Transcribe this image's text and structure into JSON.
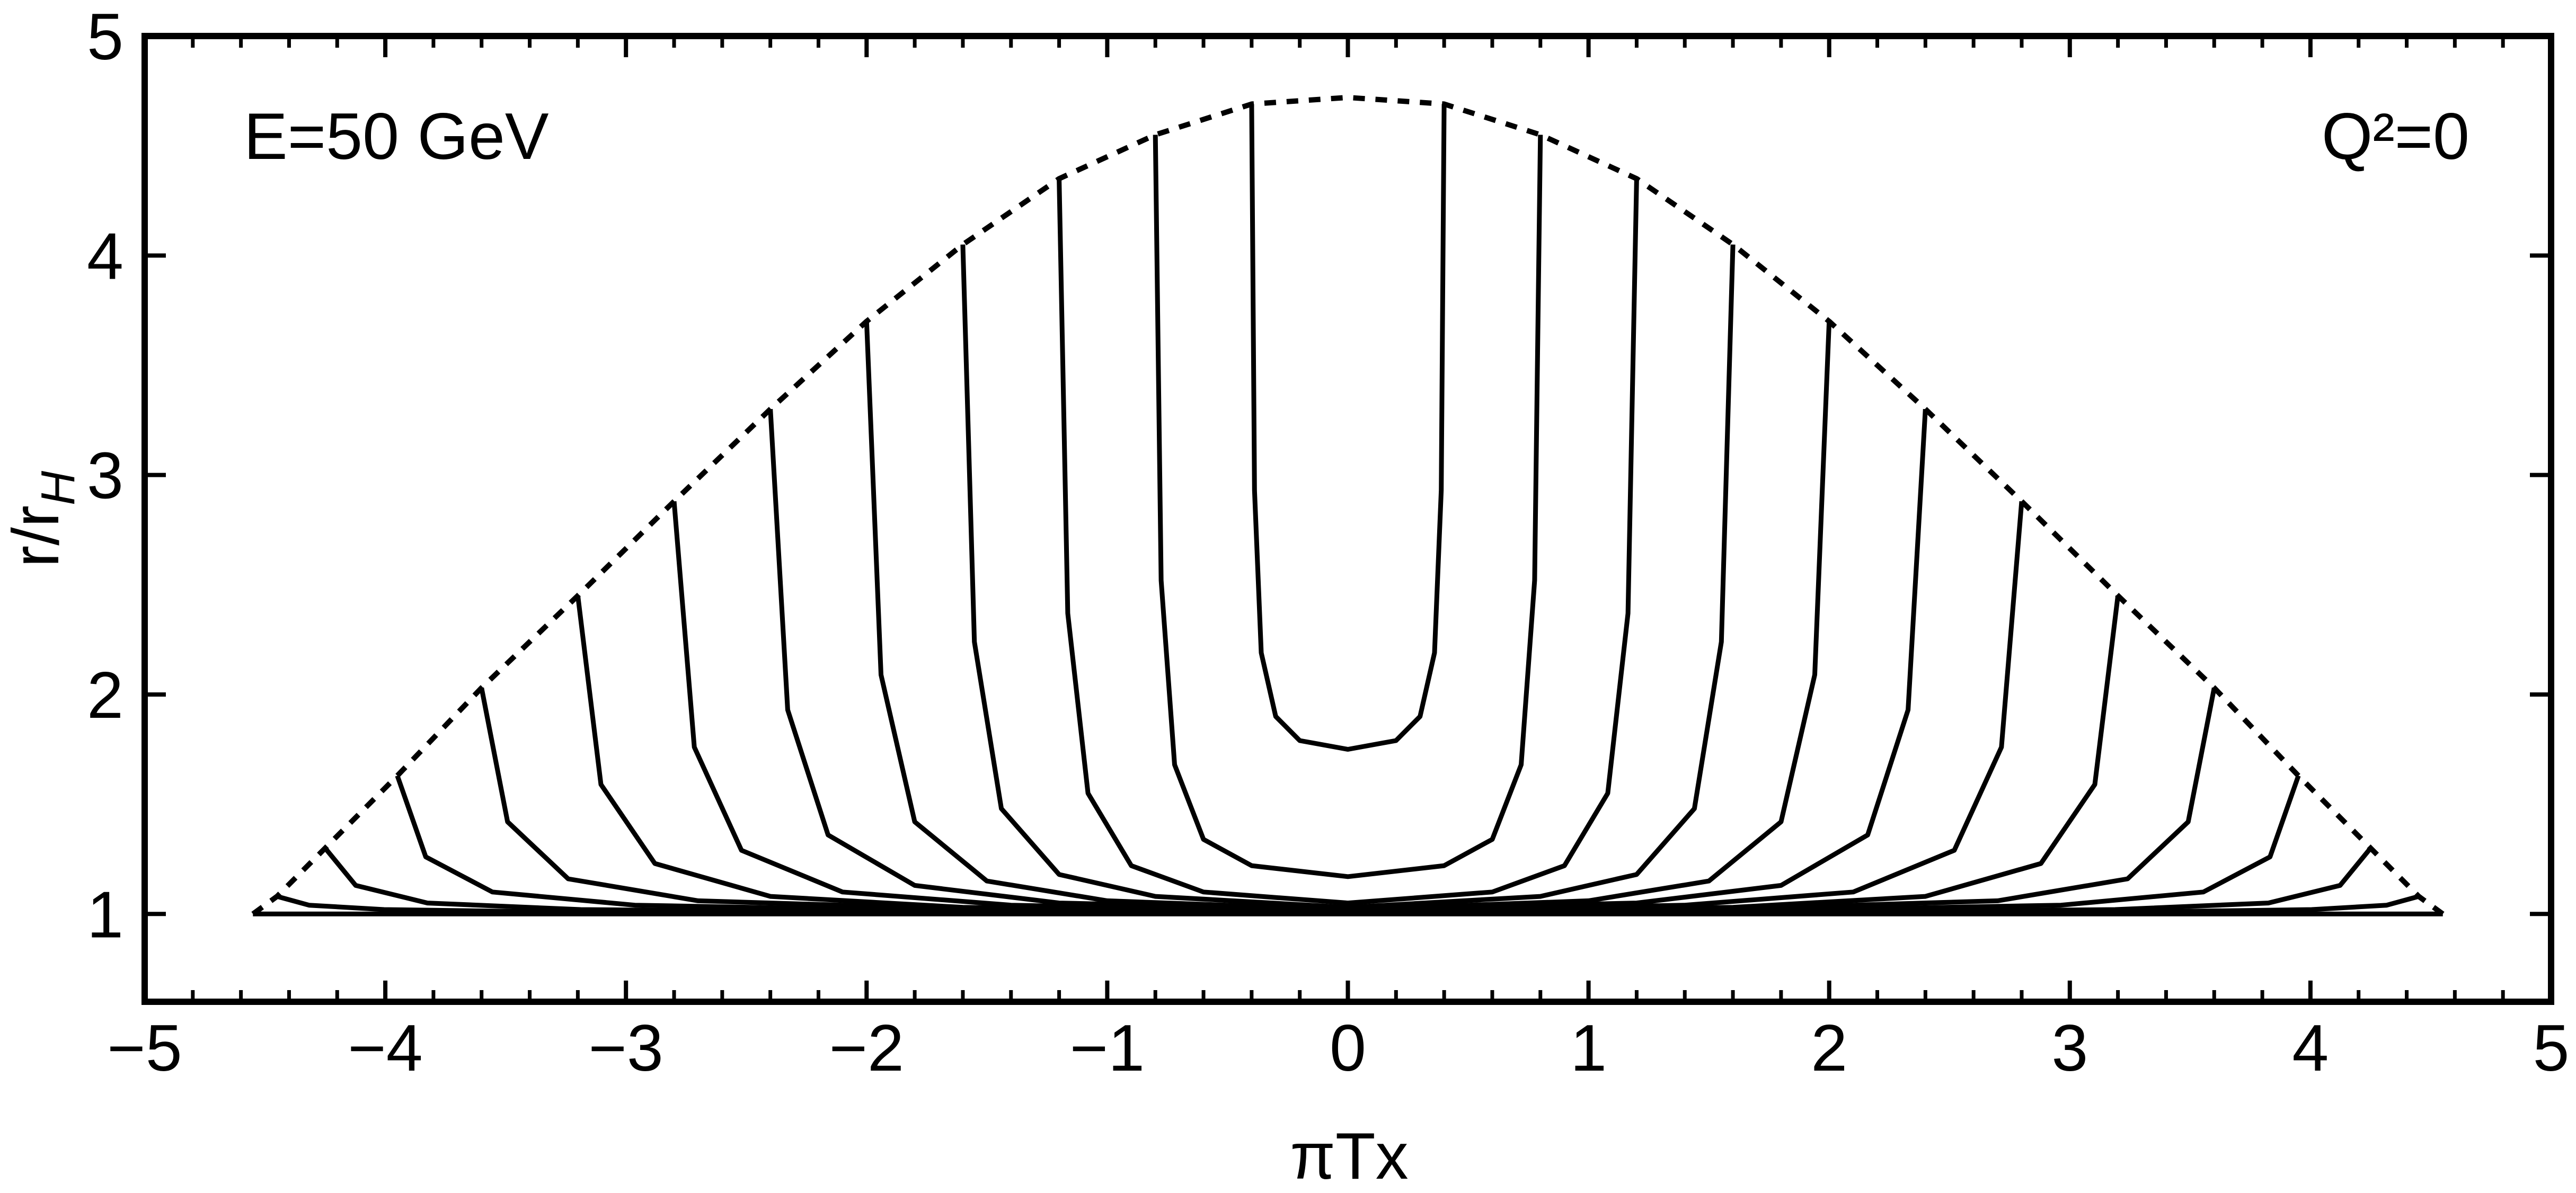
{
  "chart_data": {
    "type": "line",
    "xlabel": "πTx",
    "ylabel": [
      "r/r",
      "H"
    ],
    "annotations": [
      "E=50 GeV",
      "Q²=0"
    ],
    "xlim": [
      -5,
      5
    ],
    "ylim": [
      0.6,
      5
    ],
    "xticks": [
      {
        "value": -5,
        "label": "−5"
      },
      {
        "value": -4,
        "label": "−4"
      },
      {
        "value": -3,
        "label": "−3"
      },
      {
        "value": -2,
        "label": "−2"
      },
      {
        "value": -1,
        "label": "−1"
      },
      0,
      1,
      2,
      3,
      4,
      5
    ],
    "xminorticks": [
      -4.8,
      -4.6,
      -4.4,
      -4.2,
      -3.8,
      -3.6,
      -3.4,
      -3.2,
      -2.8,
      -2.6,
      -2.4,
      -2.2,
      -1.8,
      -1.6,
      -1.4,
      -1.2,
      -0.8,
      -0.6,
      -0.4,
      -0.2,
      0.2,
      0.4,
      0.6,
      0.8,
      1.2,
      1.4,
      1.6,
      1.8,
      2.2,
      2.4,
      2.6,
      2.8,
      3.2,
      3.4,
      3.6,
      3.8,
      4.2,
      4.4,
      4.6,
      4.8
    ],
    "yticks": [
      1,
      2,
      3,
      4,
      5
    ],
    "series": [
      {
        "color": "#000000",
        "linestyle": "dashed",
        "x": [
          -4.55,
          -4.45,
          -4.25,
          -3.95,
          -3.6,
          -3.2,
          -2.8,
          -2.4,
          -2.0,
          -1.6,
          -1.2,
          -0.8,
          -0.4,
          0,
          0.4,
          0.8,
          1.2,
          1.6,
          2.0,
          2.4,
          2.8,
          3.2,
          3.6,
          3.95,
          4.25,
          4.45,
          4.55
        ],
        "values": [
          1.0,
          1.08,
          1.3,
          1.63,
          2.03,
          2.45,
          2.88,
          3.3,
          3.7,
          4.05,
          4.35,
          4.55,
          4.69,
          4.72,
          4.69,
          4.55,
          4.35,
          4.05,
          3.7,
          3.3,
          2.88,
          2.45,
          2.03,
          1.63,
          1.3,
          1.08,
          1.0
        ]
      },
      {
        "color": "#000000",
        "linestyle": "solid",
        "x": [
          -4.55,
          4.55
        ],
        "values": [
          1,
          1
        ]
      },
      {
        "color": "#000000",
        "linestyle": "solid",
        "x": [
          -0.4,
          -0.388,
          -0.36,
          -0.3,
          -0.2,
          0,
          0.2,
          0.3,
          0.36,
          0.388,
          0.4
        ],
        "values": [
          4.69,
          2.93,
          2.19,
          1.9,
          1.79,
          1.75,
          1.79,
          1.9,
          2.19,
          2.93,
          4.69
        ]
      },
      {
        "color": "#000000",
        "linestyle": "solid",
        "x": [
          -0.8,
          -0.776,
          -0.72,
          -0.6,
          -0.4,
          0,
          0.4,
          0.6,
          0.72,
          0.776,
          0.8
        ],
        "values": [
          4.55,
          2.52,
          1.68,
          1.34,
          1.22,
          1.17,
          1.22,
          1.34,
          1.68,
          2.52,
          4.55
        ]
      },
      {
        "color": "#000000",
        "linestyle": "solid",
        "x": [
          -1.2,
          -1.164,
          -1.08,
          -0.9,
          -0.6,
          0,
          0.6,
          0.9,
          1.08,
          1.164,
          1.2
        ],
        "values": [
          4.35,
          2.37,
          1.55,
          1.22,
          1.1,
          1.05,
          1.1,
          1.22,
          1.55,
          2.37,
          4.35
        ]
      },
      {
        "color": "#000000",
        "linestyle": "solid",
        "x": [
          -1.6,
          -1.552,
          -1.44,
          -1.2,
          -0.8,
          0,
          0.8,
          1.2,
          1.44,
          1.552,
          1.6
        ],
        "values": [
          4.05,
          2.24,
          1.48,
          1.18,
          1.08,
          1.03,
          1.08,
          1.18,
          1.48,
          2.24,
          4.05
        ]
      },
      {
        "color": "#000000",
        "linestyle": "solid",
        "x": [
          -2.0,
          -1.94,
          -1.8,
          -1.5,
          -1.0,
          0,
          1.0,
          1.5,
          1.8,
          1.94,
          2.0
        ],
        "values": [
          3.7,
          2.09,
          1.42,
          1.15,
          1.06,
          1.02,
          1.06,
          1.15,
          1.42,
          2.09,
          3.7
        ]
      },
      {
        "color": "#000000",
        "linestyle": "solid",
        "x": [
          -2.4,
          -2.328,
          -2.16,
          -1.8,
          -1.2,
          0,
          1.2,
          1.8,
          2.16,
          2.328,
          2.4
        ],
        "values": [
          3.3,
          1.93,
          1.36,
          1.13,
          1.05,
          1.02,
          1.05,
          1.13,
          1.36,
          1.93,
          3.3
        ]
      },
      {
        "color": "#000000",
        "linestyle": "solid",
        "x": [
          -2.8,
          -2.716,
          -2.52,
          -2.1,
          -1.4,
          0,
          1.4,
          2.1,
          2.52,
          2.716,
          2.8
        ],
        "values": [
          2.88,
          1.76,
          1.29,
          1.1,
          1.04,
          1.01,
          1.04,
          1.1,
          1.29,
          1.76,
          2.88
        ]
      },
      {
        "color": "#000000",
        "linestyle": "solid",
        "x": [
          -3.2,
          -3.104,
          -2.88,
          -2.4,
          -1.6,
          0,
          1.6,
          2.4,
          2.88,
          3.104,
          3.2
        ],
        "values": [
          2.45,
          1.59,
          1.23,
          1.08,
          1.03,
          1.01,
          1.03,
          1.08,
          1.23,
          1.59,
          2.45
        ]
      },
      {
        "color": "#000000",
        "linestyle": "solid",
        "x": [
          -3.6,
          -3.492,
          -3.24,
          -2.7,
          -1.8,
          0,
          1.8,
          2.7,
          3.24,
          3.492,
          3.6
        ],
        "values": [
          2.03,
          1.42,
          1.16,
          1.06,
          1.03,
          1.01,
          1.03,
          1.06,
          1.16,
          1.42,
          2.03
        ]
      },
      {
        "color": "#000000",
        "linestyle": "solid",
        "x": [
          -3.95,
          -3.832,
          -3.555,
          -2.963,
          -1.975,
          0,
          1.975,
          2.963,
          3.555,
          3.832,
          3.95
        ],
        "values": [
          1.63,
          1.26,
          1.1,
          1.04,
          1.02,
          1.01,
          1.02,
          1.04,
          1.1,
          1.26,
          1.63
        ]
      },
      {
        "color": "#000000",
        "linestyle": "solid",
        "x": [
          -4.25,
          -4.123,
          -3.825,
          -3.188,
          -2.125,
          0,
          2.125,
          3.188,
          3.825,
          4.123,
          4.25
        ],
        "values": [
          1.3,
          1.13,
          1.05,
          1.02,
          1.01,
          1.01,
          1.01,
          1.02,
          1.05,
          1.13,
          1.3
        ]
      },
      {
        "color": "#000000",
        "linestyle": "solid",
        "x": [
          -4.45,
          -4.317,
          -4.005,
          -3.338,
          -2.225,
          0,
          2.225,
          3.338,
          4.005,
          4.317,
          4.45
        ],
        "values": [
          1.08,
          1.04,
          1.02,
          1.01,
          1.01,
          1.01,
          1.01,
          1.01,
          1.02,
          1.04,
          1.08
        ]
      }
    ]
  }
}
